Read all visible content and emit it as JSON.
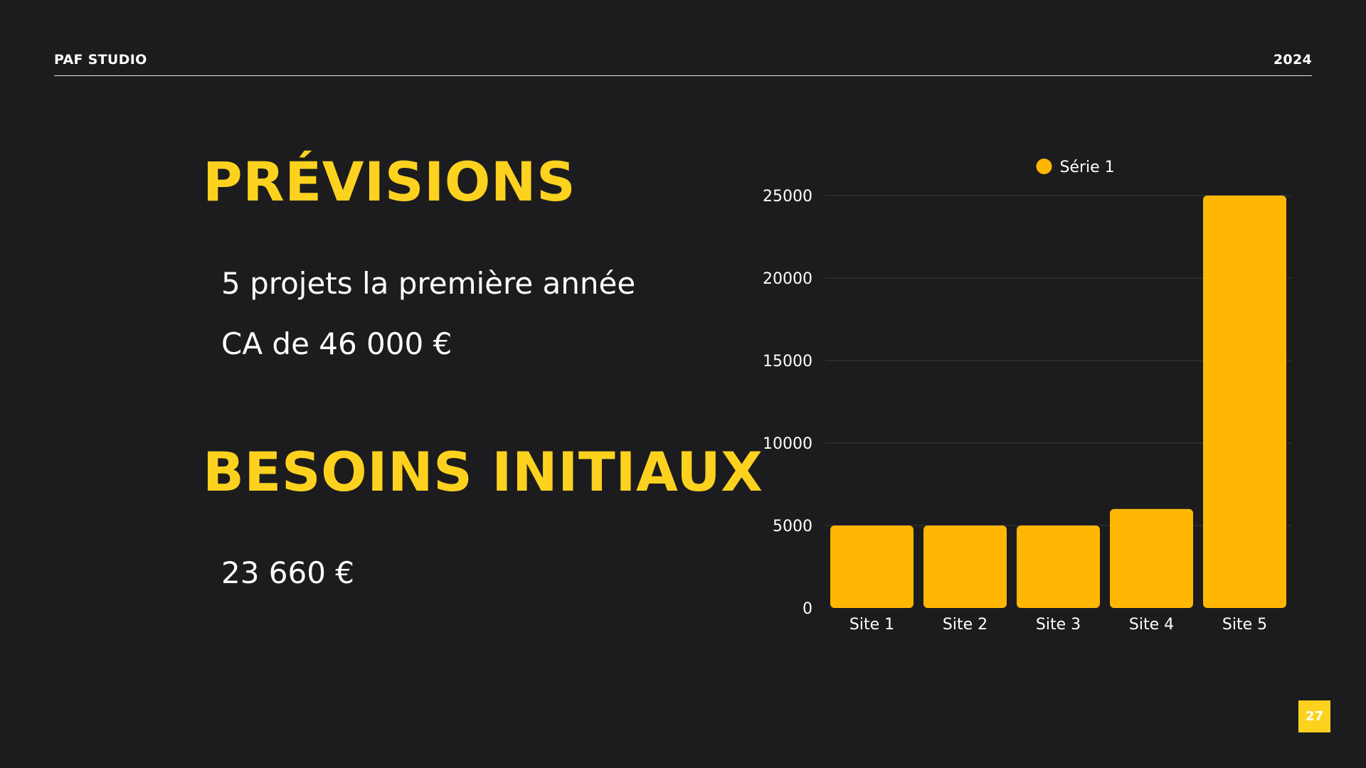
{
  "header": {
    "brand": "PAF STUDIO",
    "year": "2024"
  },
  "sections": [
    {
      "title": "PRÉVISIONS",
      "lines": [
        "5 projets la première année",
        "CA de 46 000 €"
      ]
    },
    {
      "title": "BESOINS INITIAUX",
      "lines": [
        "23 660 €"
      ]
    }
  ],
  "page_number": "27",
  "colors": {
    "background": "#1c1c1e",
    "title": "#fdd21f",
    "bar": "#ffb703",
    "gridline": "#3a3a3c"
  },
  "chart_data": {
    "type": "bar",
    "categories": [
      "Site 1",
      "Site 2",
      "Site 3",
      "Site 4",
      "Site 5"
    ],
    "series": [
      {
        "name": "Série 1",
        "values": [
          5000,
          5000,
          5000,
          6000,
          25000
        ]
      }
    ],
    "yticks": [
      0,
      5000,
      10000,
      15000,
      20000,
      25000
    ],
    "ylim": [
      0,
      25000
    ],
    "grid": true,
    "legend": "top-center"
  }
}
